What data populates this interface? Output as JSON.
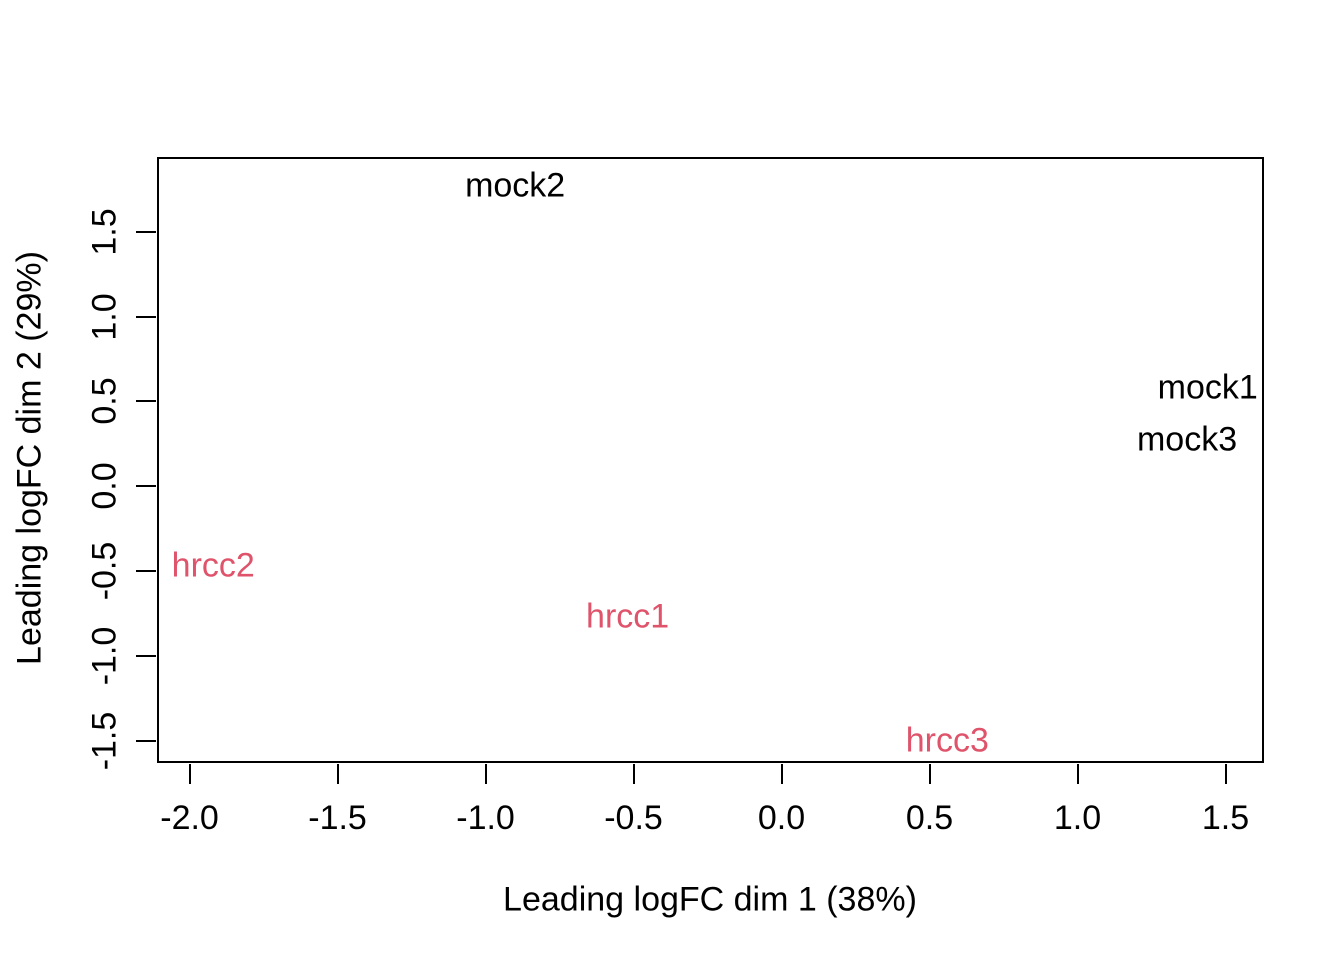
{
  "figure": {
    "background": "#ffffff",
    "text_color": "#000000"
  },
  "chart_data": {
    "type": "scatter",
    "subtype": "mds-plot-text-labels",
    "title": "",
    "xlabel": "Leading logFC dim 1 (38%)",
    "ylabel": "Leading logFC dim 2 (29%)",
    "xlim": [
      -2.11,
      1.63
    ],
    "ylim": [
      -1.63,
      1.94
    ],
    "x_ticks": [
      -2.0,
      -1.5,
      -1.0,
      -0.5,
      0.0,
      0.5,
      1.0,
      1.5
    ],
    "x_tick_labels": [
      "-2.0",
      "-1.5",
      "-1.0",
      "-0.5",
      "0.0",
      "0.5",
      "1.0",
      "1.5"
    ],
    "y_ticks": [
      -1.5,
      -1.0,
      -0.5,
      0.0,
      0.5,
      1.0,
      1.5
    ],
    "y_tick_labels": [
      "-1.5",
      "-1.0",
      "-0.5",
      "0.0",
      "0.5",
      "1.0",
      "1.5"
    ],
    "grid": false,
    "legend": "none",
    "point_style": "text-labels",
    "series": [
      {
        "name": "mock",
        "color": "#000000",
        "points": [
          {
            "label": "mock1",
            "x": 1.44,
            "y": 0.58
          },
          {
            "label": "mock2",
            "x": -0.9,
            "y": 1.77
          },
          {
            "label": "mock3",
            "x": 1.37,
            "y": 0.27
          }
        ]
      },
      {
        "name": "hrcc",
        "color": "#DF536B",
        "points": [
          {
            "label": "hrcc1",
            "x": -0.52,
            "y": -0.77
          },
          {
            "label": "hrcc2",
            "x": -1.92,
            "y": -0.47
          },
          {
            "label": "hrcc3",
            "x": 0.56,
            "y": -1.5
          }
        ]
      }
    ]
  }
}
